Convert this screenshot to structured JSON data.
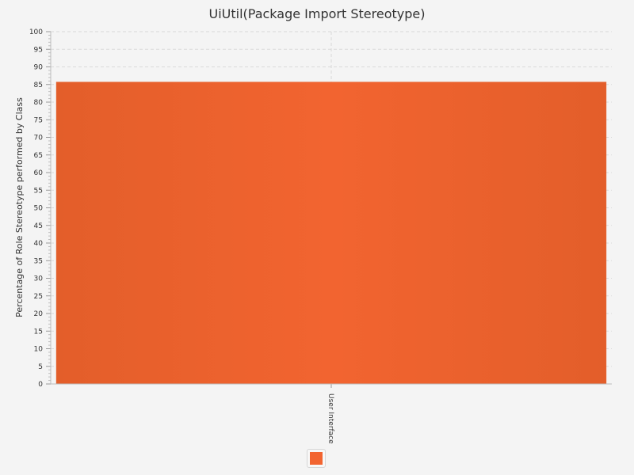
{
  "chart_data": {
    "type": "bar",
    "title": "UiUtil(Package Import Stereotype)",
    "xlabel": "",
    "ylabel": "Percentage of Role Stereotype performed by Class",
    "categories": [
      "User Interface"
    ],
    "series": [
      {
        "values": [
          85.7
        ]
      }
    ],
    "ylim": [
      0,
      100
    ],
    "y_major_step": 5,
    "y_minor_step": 1,
    "grid": true,
    "legend": "bottom-center"
  },
  "colors": {
    "background": "#f4f4f4",
    "bar": "#f26430",
    "bar_edge": "#e35e2a",
    "grid": "#d9d9d9"
  }
}
